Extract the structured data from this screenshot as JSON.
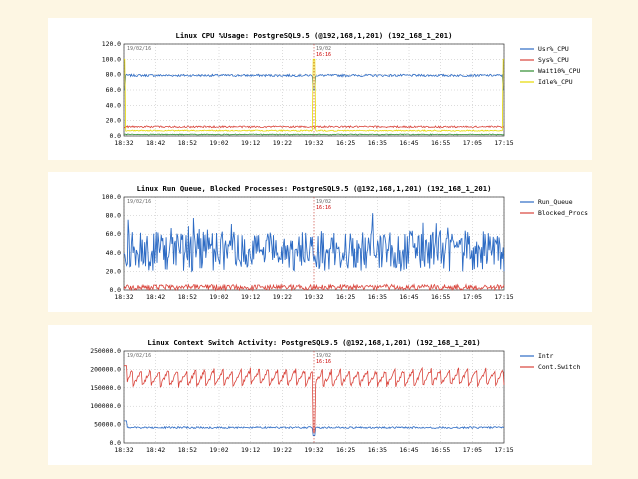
{
  "colors": {
    "background": "#fdf6e3",
    "blue": "#2d6bc4",
    "red": "#d9433a",
    "green": "#2e8b2e",
    "yellow": "#e6d800"
  },
  "x_ticks": [
    "18:32",
    "18:42",
    "18:52",
    "19:02",
    "19:12",
    "19:22",
    "19:32",
    "16:25",
    "16:35",
    "16:45",
    "16:55",
    "17:05",
    "17:15"
  ],
  "chart_data": [
    {
      "type": "line",
      "title": "Linux CPU %Usage: PostgreSQL9.5 (@192,168,1,201) (192_168_1_201)",
      "date_left": "19/02/16",
      "date_mid": "19/02",
      "date_mid_time": "16:16",
      "ylim": [
        0,
        120
      ],
      "y_ticks": [
        "0.0",
        "20.0",
        "40.0",
        "60.0",
        "80.0",
        "100.0",
        "120.0"
      ],
      "series": [
        {
          "name": "Usr%_CPU",
          "color": "#2d6bc4",
          "level": 79,
          "noise": 1.5
        },
        {
          "name": "Sys%_CPU",
          "color": "#d9433a",
          "level": 12,
          "noise": 1.2
        },
        {
          "name": "Wait10%_CPU",
          "color": "#2e8b2e",
          "level": 2,
          "noise": 0.6
        },
        {
          "name": "Idle%_CPU",
          "color": "#e6d800",
          "level": 7,
          "noise": 0.8
        }
      ]
    },
    {
      "type": "line",
      "title": "Linux Run Queue, Blocked Processes: PostgreSQL9.5 (@192,168,1,201) (192_168_1_201)",
      "date_left": "19/02/16",
      "date_mid": "19/02",
      "date_mid_time": "16:16",
      "ylim": [
        0,
        100
      ],
      "y_ticks": [
        "0.0",
        "20.0",
        "40.0",
        "60.0",
        "80.0",
        "100.0"
      ],
      "series": [
        {
          "name": "Run_Queue",
          "color": "#2d6bc4",
          "level": 42,
          "noise": 22
        },
        {
          "name": "Blocked_Procs",
          "color": "#d9433a",
          "level": 3,
          "noise": 3
        }
      ]
    },
    {
      "type": "line",
      "title": "Linux Context Switch Activity: PostgreSQL9.5 (@192,168,1,201) (192_168_1_201)",
      "date_left": "19/02/16",
      "date_mid": "19/02",
      "date_mid_time": "16:16",
      "ylim": [
        0,
        250000
      ],
      "y_ticks": [
        "0.0",
        "50000.0",
        "100000.0",
        "150000.0",
        "200000.0",
        "250000.0"
      ],
      "series": [
        {
          "name": "Intr",
          "color": "#2d6bc4",
          "level": 42000,
          "noise": 2500
        },
        {
          "name": "Cont.Switch",
          "color": "#d9433a",
          "level": 180000,
          "noise": 12000
        }
      ]
    }
  ]
}
